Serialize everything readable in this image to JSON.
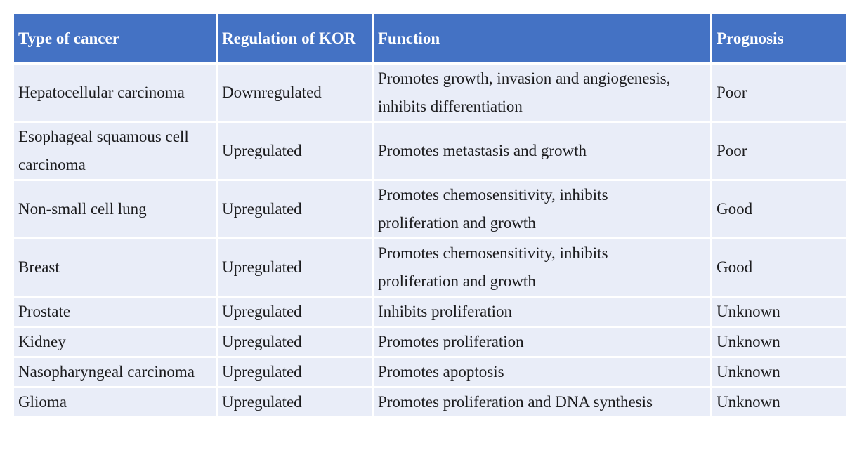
{
  "table": {
    "columns": [
      {
        "key": "cancer",
        "label": "Type of cancer"
      },
      {
        "key": "regulation",
        "label": "Regulation of KOR"
      },
      {
        "key": "function",
        "label": "Function"
      },
      {
        "key": "prognosis",
        "label": "Prognosis"
      }
    ],
    "rows": [
      {
        "cancer": "Hepatocellular carcinoma",
        "regulation": "Downregulated",
        "function": "Promotes growth, invasion and angiogenesis, inhibits differentiation",
        "prognosis": "Poor"
      },
      {
        "cancer": "Esophageal squamous cell carcinoma",
        "regulation": "Upregulated",
        "function": "Promotes metastasis and growth",
        "prognosis": "Poor"
      },
      {
        "cancer": "Non-small cell lung",
        "regulation": "Upregulated",
        "function": "Promotes chemosensitivity, inhibits proliferation and growth",
        "prognosis": "Good"
      },
      {
        "cancer": "Breast",
        "regulation": "Upregulated",
        "function": "Promotes chemosensitivity, inhibits proliferation and growth",
        "prognosis": "Good"
      },
      {
        "cancer": "Prostate",
        "regulation": "Upregulated",
        "function": "Inhibits proliferation",
        "prognosis": "Unknown"
      },
      {
        "cancer": "Kidney",
        "regulation": "Upregulated",
        "function": "Promotes proliferation",
        "prognosis": "Unknown"
      },
      {
        "cancer": "Nasopharyngeal carcinoma",
        "regulation": "Upregulated",
        "function": "Promotes apoptosis",
        "prognosis": "Unknown"
      },
      {
        "cancer": "Glioma",
        "regulation": "Upregulated",
        "function": "Promotes proliferation and DNA synthesis",
        "prognosis": "Unknown"
      }
    ]
  },
  "colors": {
    "header_bg": "#4472C4",
    "header_text": "#FFFFFF",
    "row_bg": "#E9EDF8",
    "body_text": "#1C1C1E",
    "grid": "#FFFFFF"
  }
}
